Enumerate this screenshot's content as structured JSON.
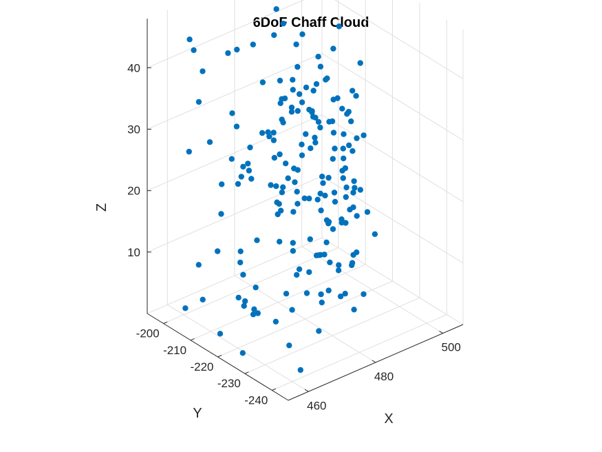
{
  "chart_data": {
    "type": "scatter3d",
    "title": "6DoF Chaff Cloud",
    "xlabel": "X",
    "ylabel": "Y",
    "zlabel": "Z",
    "xlim": [
      454,
      506
    ],
    "ylim": [
      -246,
      -194
    ],
    "zlim": [
      0,
      48
    ],
    "xticks": [
      460,
      480,
      500
    ],
    "yticks": [
      -200,
      -210,
      -220,
      -230,
      -240
    ],
    "zticks": [
      10,
      20,
      30,
      40
    ],
    "grid": true,
    "marker_color": "#0072BD",
    "points": [
      [
        494.1,
        -196.0,
        47.5
      ],
      [
        479.6,
        -209.9,
        47.8
      ],
      [
        482.6,
        -203.1,
        25.2
      ],
      [
        478.6,
        -229.1,
        22.9
      ],
      [
        502.6,
        -200.1,
        28.4
      ],
      [
        469.8,
        -204.2,
        41.4
      ],
      [
        470.0,
        -200.1,
        8.0
      ],
      [
        467.7,
        -243.9,
        32.4
      ],
      [
        464.7,
        -214.4,
        5.6
      ],
      [
        500.3,
        -208.5,
        26.3
      ],
      [
        473.7,
        -223.2,
        41.3
      ],
      [
        480.7,
        -222.9,
        33.4
      ],
      [
        489.4,
        -228.7,
        41.8
      ],
      [
        494.8,
        -219.1,
        33.4
      ],
      [
        468.3,
        -207.6,
        32.9
      ],
      [
        482.3,
        -227.2,
        33.6
      ],
      [
        476.0,
        -213.5,
        45.4
      ],
      [
        458.5,
        -221.9,
        27.6
      ],
      [
        493.6,
        -222.1,
        8.2
      ],
      [
        478.7,
        -229.6,
        19.0
      ],
      [
        477.1,
        -214.0,
        17.8
      ],
      [
        468.4,
        -222.8,
        32.6
      ],
      [
        457.5,
        -208.7,
        37.6
      ],
      [
        473.6,
        -233.6,
        46.3
      ],
      [
        489.3,
        -221.0,
        45.7
      ],
      [
        479.1,
        -237.6,
        22.8
      ],
      [
        474.2,
        -242.0,
        31.9
      ],
      [
        503.2,
        -209.5,
        13.0
      ],
      [
        484.8,
        -237.0,
        20.9
      ],
      [
        463.7,
        -229.4,
        6.0
      ],
      [
        481.0,
        -231.1,
        10.7
      ],
      [
        461.6,
        -241.1,
        1.8
      ],
      [
        483.9,
        -206.6,
        27.9
      ],
      [
        469.8,
        -213.5,
        1.4
      ],
      [
        480.7,
        -211.1,
        45.5
      ],
      [
        492.5,
        -222.3,
        8.1
      ],
      [
        478.8,
        -211.4,
        15.0
      ],
      [
        461.2,
        -223.0,
        33.2
      ],
      [
        489.1,
        -225.9,
        8.2
      ],
      [
        481.1,
        -216.5,
        6.9
      ],
      [
        470.8,
        -239.3,
        19.9
      ],
      [
        482.3,
        -222.0,
        42.7
      ],
      [
        495.8,
        -199.3,
        25.9
      ],
      [
        463.7,
        -216.4,
        13.9
      ],
      [
        468.2,
        -221.4,
        32.9
      ],
      [
        469.3,
        -220.6,
        24.5
      ],
      [
        472.3,
        -204.3,
        28.9
      ],
      [
        482.8,
        -238.1,
        8.3
      ],
      [
        457.3,
        -224.6,
        29.8
      ],
      [
        479.9,
        -232.5,
        12.2
      ],
      [
        495.3,
        -209.6,
        9.1
      ],
      [
        483.5,
        -230.6,
        17.7
      ],
      [
        493.3,
        -213.9,
        39.2
      ],
      [
        479.8,
        -212.8,
        34.0
      ],
      [
        463.6,
        -228.7,
        36.6
      ],
      [
        481.1,
        -220.1,
        7.4
      ],
      [
        465.0,
        -234.1,
        44.7
      ],
      [
        466.7,
        -226.1,
        23.8
      ],
      [
        481.2,
        -236.0,
        31.4
      ],
      [
        494.0,
        -217.7,
        15.9
      ],
      [
        461.7,
        -201.6,
        43.1
      ],
      [
        470.0,
        -232.6,
        35.9
      ],
      [
        458.5,
        -207.4,
        10.5
      ],
      [
        490.1,
        -216.6,
        5.9
      ],
      [
        480.4,
        -226.6,
        12.2
      ],
      [
        496.0,
        -215.6,
        28.4
      ],
      [
        463.5,
        -220.6,
        26.9
      ],
      [
        476.5,
        -219.4,
        35.1
      ],
      [
        477.0,
        -208.1,
        36.0
      ],
      [
        470.6,
        -208.8,
        6.4
      ],
      [
        484.6,
        -212.2,
        33.4
      ],
      [
        480.3,
        -216.8,
        40.1
      ],
      [
        477.8,
        -219.6,
        7.6
      ],
      [
        473.5,
        -233.6,
        36.4
      ],
      [
        470.2,
        -227.2,
        38.0
      ],
      [
        474.8,
        -232.3,
        8.6
      ],
      [
        476.9,
        -228.9,
        1.2
      ],
      [
        484.0,
        -227.0,
        36.9
      ],
      [
        490.1,
        -211.7,
        5.7
      ],
      [
        459.2,
        -201.6,
        1.7
      ],
      [
        501.6,
        -196.8,
        18.1
      ],
      [
        472.1,
        -222.6,
        27.9
      ],
      [
        490.2,
        -198.0,
        18.4
      ],
      [
        469.2,
        -230.6,
        24.2
      ],
      [
        491.3,
        -207.5,
        28.0
      ],
      [
        466.8,
        -226.9,
        17.6
      ],
      [
        489.2,
        -200.5,
        24.5
      ],
      [
        473.2,
        -219.9,
        22.2
      ],
      [
        489.0,
        -224.1,
        20.4
      ],
      [
        475.2,
        -228.5,
        37.3
      ],
      [
        477.9,
        -216.3,
        22.4
      ],
      [
        496.8,
        -201.7,
        24.7
      ],
      [
        486.9,
        -221.9,
        34.6
      ],
      [
        467.3,
        -213.2,
        3.3
      ],
      [
        462.8,
        -220.6,
        28.4
      ],
      [
        473.1,
        -243.3,
        12.1
      ],
      [
        471.4,
        -229.4,
        33.0
      ],
      [
        495.6,
        -214.7,
        22.6
      ],
      [
        460.5,
        -235.2,
        26.4
      ],
      [
        474.1,
        -233.9,
        27.3
      ],
      [
        482.5,
        -213.1,
        19.8
      ],
      [
        464.8,
        -243.9,
        20.5
      ],
      [
        476.9,
        -241.6,
        24.8
      ],
      [
        476.1,
        -243.9,
        24.2
      ],
      [
        476.7,
        -235.0,
        32.6
      ],
      [
        485.6,
        -209.8,
        40.6
      ],
      [
        469.2,
        -227.5,
        0.3
      ],
      [
        490.3,
        -225.0,
        19.5
      ],
      [
        499.2,
        -215.0,
        30.4
      ],
      [
        489.1,
        -217.6,
        29.3
      ],
      [
        458.6,
        -223.5,
        0.5
      ],
      [
        469.6,
        -224.7,
        25.2
      ],
      [
        462.2,
        -219.9,
        7.1
      ],
      [
        483.1,
        -216.8,
        2.6
      ],
      [
        486.1,
        -228.5,
        34.6
      ],
      [
        468.2,
        -236.6,
        35.1
      ],
      [
        474.2,
        -222.7,
        14.5
      ],
      [
        478.2,
        -228.4,
        5.4
      ],
      [
        485.5,
        -204.1,
        29.5
      ],
      [
        491.8,
        -222.3,
        30.0
      ],
      [
        473.0,
        -239.2,
        37.2
      ],
      [
        487.0,
        -212.8,
        16.0
      ],
      [
        478.5,
        -239.9,
        28.2
      ],
      [
        464.7,
        -213.8,
        45.8
      ],
      [
        478.3,
        -219.4,
        24.5
      ],
      [
        486.2,
        -233.9,
        32.2
      ],
      [
        461.0,
        -212.6,
        19.6
      ],
      [
        480.8,
        -232.5,
        18.9
      ],
      [
        486.0,
        -222.8,
        25.4
      ],
      [
        486.5,
        -216.9,
        29.7
      ],
      [
        465.2,
        -200.6,
        1.4
      ],
      [
        489.4,
        -221.8,
        14.5
      ],
      [
        459.5,
        -202.8,
        45.7
      ],
      [
        488.5,
        -223.6,
        25.1
      ],
      [
        483.9,
        -233.2,
        4.2
      ],
      [
        489.1,
        -219.0,
        12.2
      ],
      [
        488.1,
        -224.0,
        22.1
      ],
      [
        461.2,
        -240.3,
        30.7
      ],
      [
        483.6,
        -221.4,
        17.2
      ],
      [
        472.3,
        -235.2,
        16.4
      ],
      [
        456.5,
        -225.2,
        16.2
      ],
      [
        473.7,
        -212.0,
        29.6
      ],
      [
        475.4,
        -206.5,
        42.1
      ],
      [
        462.5,
        -203.9,
        40.1
      ],
      [
        475.8,
        -220.4,
        2.6
      ],
      [
        458.9,
        -223.3,
        30.7
      ],
      [
        473.2,
        -234.7,
        28.8
      ],
      [
        488.8,
        -223.3,
        28.9
      ],
      [
        486.6,
        -216.0,
        35.6
      ],
      [
        480.4,
        -216.8,
        32.9
      ],
      [
        477.9,
        -222.4,
        20.8
      ],
      [
        462.2,
        -243.9,
        23.7
      ],
      [
        490.9,
        -223.9,
        7.6
      ],
      [
        481.9,
        -226.4,
        17.1
      ],
      [
        486.8,
        -237.3,
        16.9
      ],
      [
        462.7,
        -237.1,
        26.2
      ],
      [
        471.0,
        -224.2,
        7.4
      ],
      [
        457.9,
        -204.6,
        28.3
      ],
      [
        484.2,
        -217.9,
        35.6
      ],
      [
        482.2,
        -212.8,
        8.6
      ],
      [
        457.7,
        -216.3,
        1.9
      ],
      [
        467.4,
        -224.3,
        30.4
      ],
      [
        494.6,
        -200.9,
        37.7
      ],
      [
        475.8,
        -221.1,
        25.8
      ],
      [
        487.4,
        -214.6,
        25.5
      ],
      [
        467.4,
        -227.0,
        40.7
      ],
      [
        459.6,
        -218.2,
        30.4
      ],
      [
        463.2,
        -219.7,
        29.2
      ],
      [
        492.2,
        -205.3,
        30.8
      ],
      [
        493.9,
        -216.5,
        19.9
      ],
      [
        465.2,
        -220.9,
        4.7
      ],
      [
        479.5,
        -231.4,
        23.8
      ],
      [
        480.2,
        -227.3,
        40.9
      ],
      [
        471.0,
        -230.0,
        31.5
      ],
      [
        482.6,
        -221.4,
        19.2
      ],
      [
        458.0,
        -216.5,
        26.2
      ],
      [
        496.0,
        -211.2,
        12.9
      ],
      [
        466.4,
        -227.6,
        44.1
      ],
      [
        465.0,
        -219.8,
        5.1
      ],
      [
        471.8,
        -212.4,
        12.7
      ],
      [
        490.0,
        -220.7,
        1.5
      ],
      [
        468.4,
        -240.0,
        28.6
      ],
      [
        476.1,
        -241.0,
        34.9
      ],
      [
        480.7,
        -227.8,
        6.6
      ],
      [
        466.5,
        -201.6,
        27.0
      ],
      [
        481.5,
        -238.5,
        25.7
      ],
      [
        477.9,
        -204.4,
        1.4
      ],
      [
        465.4,
        -227.4,
        27.1
      ],
      [
        488.0,
        -229.1,
        30.0
      ],
      [
        489.8,
        -210.8,
        28.1
      ]
    ]
  }
}
